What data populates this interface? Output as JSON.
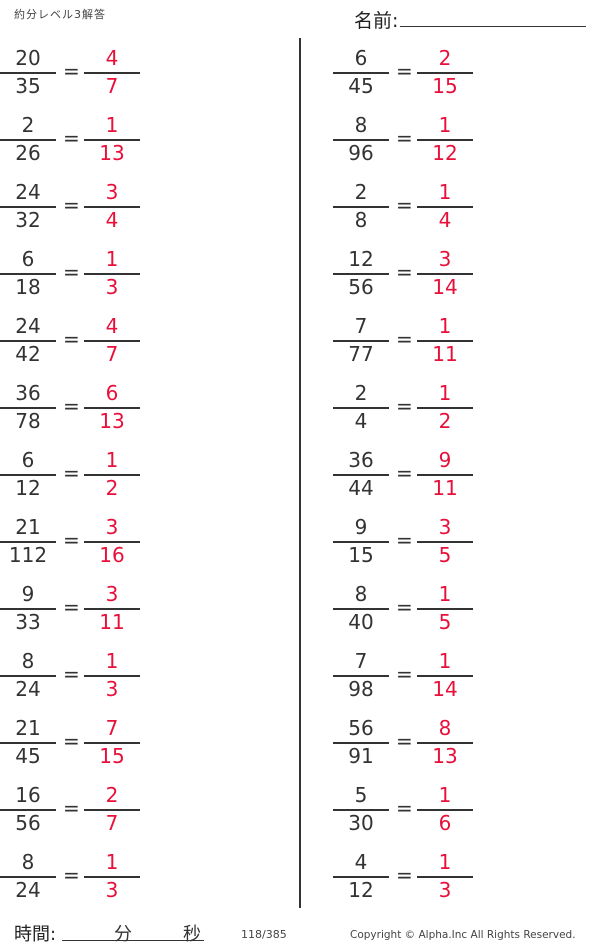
{
  "header": {
    "title": "約分レベル3解答",
    "name_label": "名前:"
  },
  "colors": {
    "answer": "#e8103a",
    "text": "#333333"
  },
  "problems": {
    "left": [
      {
        "num": "20",
        "den": "35",
        "ans_num": "4",
        "ans_den": "7"
      },
      {
        "num": "2",
        "den": "26",
        "ans_num": "1",
        "ans_den": "13"
      },
      {
        "num": "24",
        "den": "32",
        "ans_num": "3",
        "ans_den": "4"
      },
      {
        "num": "6",
        "den": "18",
        "ans_num": "1",
        "ans_den": "3"
      },
      {
        "num": "24",
        "den": "42",
        "ans_num": "4",
        "ans_den": "7"
      },
      {
        "num": "36",
        "den": "78",
        "ans_num": "6",
        "ans_den": "13"
      },
      {
        "num": "6",
        "den": "12",
        "ans_num": "1",
        "ans_den": "2"
      },
      {
        "num": "21",
        "den": "112",
        "ans_num": "3",
        "ans_den": "16"
      },
      {
        "num": "9",
        "den": "33",
        "ans_num": "3",
        "ans_den": "11"
      },
      {
        "num": "8",
        "den": "24",
        "ans_num": "1",
        "ans_den": "3"
      },
      {
        "num": "21",
        "den": "45",
        "ans_num": "7",
        "ans_den": "15"
      },
      {
        "num": "16",
        "den": "56",
        "ans_num": "2",
        "ans_den": "7"
      },
      {
        "num": "8",
        "den": "24",
        "ans_num": "1",
        "ans_den": "3"
      }
    ],
    "right": [
      {
        "num": "6",
        "den": "45",
        "ans_num": "2",
        "ans_den": "15"
      },
      {
        "num": "8",
        "den": "96",
        "ans_num": "1",
        "ans_den": "12"
      },
      {
        "num": "2",
        "den": "8",
        "ans_num": "1",
        "ans_den": "4"
      },
      {
        "num": "12",
        "den": "56",
        "ans_num": "3",
        "ans_den": "14"
      },
      {
        "num": "7",
        "den": "77",
        "ans_num": "1",
        "ans_den": "11"
      },
      {
        "num": "2",
        "den": "4",
        "ans_num": "1",
        "ans_den": "2"
      },
      {
        "num": "36",
        "den": "44",
        "ans_num": "9",
        "ans_den": "11"
      },
      {
        "num": "9",
        "den": "15",
        "ans_num": "3",
        "ans_den": "5"
      },
      {
        "num": "8",
        "den": "40",
        "ans_num": "1",
        "ans_den": "5"
      },
      {
        "num": "7",
        "den": "98",
        "ans_num": "1",
        "ans_den": "14"
      },
      {
        "num": "56",
        "den": "91",
        "ans_num": "8",
        "ans_den": "13"
      },
      {
        "num": "5",
        "den": "30",
        "ans_num": "1",
        "ans_den": "6"
      },
      {
        "num": "4",
        "den": "12",
        "ans_num": "1",
        "ans_den": "3"
      }
    ],
    "equals": "="
  },
  "footer": {
    "time_label": "時間:",
    "minutes_label": "分",
    "seconds_label": "秒",
    "page": "118/385",
    "copyright": "Copyright ©  Alpha.Inc All Rights Reserved."
  }
}
